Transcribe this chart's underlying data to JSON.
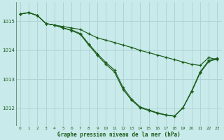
{
  "xlabel": "Graphe pression niveau de la mer (hPa)",
  "background_color": "#c8eaea",
  "grid_color": "#b0d4d4",
  "line_color": "#1a5c1a",
  "xlim": [
    -0.5,
    23.5
  ],
  "ylim": [
    1011.4,
    1015.65
  ],
  "yticks": [
    1012,
    1013,
    1014,
    1015
  ],
  "xticks": [
    0,
    1,
    2,
    3,
    4,
    5,
    6,
    7,
    8,
    9,
    10,
    11,
    12,
    13,
    14,
    15,
    16,
    17,
    18,
    19,
    20,
    21,
    22,
    23
  ],
  "s1": [
    1015.25,
    1015.3,
    1015.2,
    1014.92,
    1014.87,
    1014.82,
    1014.77,
    1014.72,
    1014.57,
    1014.43,
    1014.35,
    1014.27,
    1014.18,
    1014.1,
    1014.0,
    1013.92,
    1013.84,
    1013.76,
    1013.68,
    1013.6,
    1013.52,
    1013.48,
    1013.75,
    1013.68
  ],
  "s2": [
    1015.25,
    1015.3,
    1015.2,
    1014.92,
    1014.87,
    1014.77,
    1014.68,
    1014.55,
    1014.18,
    1013.83,
    1013.52,
    1013.25,
    1012.65,
    1012.28,
    1012.02,
    1011.93,
    1011.83,
    1011.77,
    1011.73,
    1012.02,
    1012.57,
    1013.22,
    1013.62,
    1013.7
  ],
  "s3": [
    1015.25,
    1015.3,
    1015.2,
    1014.92,
    1014.87,
    1014.77,
    1014.7,
    1014.58,
    1014.22,
    1013.88,
    1013.58,
    1013.32,
    1012.72,
    1012.32,
    1012.05,
    1011.95,
    1011.85,
    1011.78,
    1011.74,
    1012.03,
    1012.6,
    1013.26,
    1013.65,
    1013.73
  ]
}
